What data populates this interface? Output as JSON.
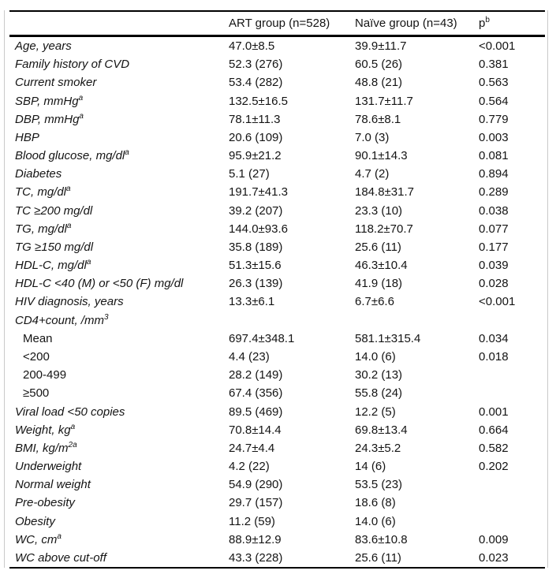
{
  "colors": {
    "background": "#ffffff",
    "text": "#141414",
    "rule_black": "#000000",
    "rule_gray": "#c9c9c9"
  },
  "table": {
    "header": {
      "col1": "",
      "col2": "ART group (n=528)",
      "col3": "Naïve group (n=43)",
      "col4": "p",
      "col4_sup": "b"
    },
    "rows": [
      {
        "label": "Age, years",
        "sup": "",
        "indent": false,
        "upright": false,
        "art": "47.0±8.5",
        "naive": "39.9±11.7",
        "p": "<0.001"
      },
      {
        "label": "Family history of CVD",
        "sup": "",
        "indent": false,
        "upright": false,
        "art": "52.3 (276)",
        "naive": "60.5 (26)",
        "p": "0.381"
      },
      {
        "label": "Current smoker",
        "sup": "",
        "indent": false,
        "upright": false,
        "art": "53.4 (282)",
        "naive": "48.8 (21)",
        "p": "0.563"
      },
      {
        "label": "SBP, mmHg",
        "sup": "a",
        "indent": false,
        "upright": false,
        "art": "132.5±16.5",
        "naive": "131.7±11.7",
        "p": "0.564"
      },
      {
        "label": "DBP, mmHg",
        "sup": "a",
        "indent": false,
        "upright": false,
        "art": "78.1±11.3",
        "naive": "78.6±8.1",
        "p": "0.779"
      },
      {
        "label": "HBP",
        "sup": "",
        "indent": false,
        "upright": false,
        "art": "20.6 (109)",
        "naive": "7.0 (3)",
        "p": "0.003"
      },
      {
        "label": "Blood glucose, mg/dl",
        "sup": "a",
        "indent": false,
        "upright": false,
        "art": "95.9±21.2",
        "naive": "90.1±14.3",
        "p": "0.081"
      },
      {
        "label": "Diabetes",
        "sup": "",
        "indent": false,
        "upright": false,
        "art": "5.1 (27)",
        "naive": "4.7 (2)",
        "p": "0.894"
      },
      {
        "label": "TC, mg/dl",
        "sup": "a",
        "indent": false,
        "upright": false,
        "art": "191.7±41.3",
        "naive": "184.8±31.7",
        "p": "0.289"
      },
      {
        "label": "TC ≥200 mg/dl",
        "sup": "",
        "indent": false,
        "upright": false,
        "art": "39.2 (207)",
        "naive": "23.3 (10)",
        "p": "0.038"
      },
      {
        "label": "TG, mg/dl",
        "sup": "a",
        "indent": false,
        "upright": false,
        "art": "144.0±93.6",
        "naive": "118.2±70.7",
        "p": "0.077"
      },
      {
        "label": "TG ≥150 mg/dl",
        "sup": "",
        "indent": false,
        "upright": false,
        "art": "35.8 (189)",
        "naive": "25.6 (11)",
        "p": "0.177"
      },
      {
        "label": "HDL-C, mg/dl",
        "sup": "a",
        "indent": false,
        "upright": false,
        "art": "51.3±15.6",
        "naive": "46.3±10.4",
        "p": "0.039"
      },
      {
        "label": "HDL-C <40 (M) or <50 (F) mg/dl",
        "sup": "",
        "indent": false,
        "upright": false,
        "art": "26.3 (139)",
        "naive": "41.9 (18)",
        "p": "0.028"
      },
      {
        "label": "HIV diagnosis, years",
        "sup": "",
        "indent": false,
        "upright": false,
        "art": "13.3±6.1",
        "naive": "6.7±6.6",
        "p": "<0.001"
      },
      {
        "label": "CD4+count, /mm",
        "sup": "3",
        "indent": false,
        "upright": false,
        "art": "",
        "naive": "",
        "p": ""
      },
      {
        "label": "Mean",
        "sup": "",
        "indent": true,
        "upright": true,
        "art": "697.4±348.1",
        "naive": "581.1±315.4",
        "p": "0.034"
      },
      {
        "label": "<200",
        "sup": "",
        "indent": true,
        "upright": true,
        "art": "4.4 (23)",
        "naive": "14.0 (6)",
        "p": "0.018"
      },
      {
        "label": "200-499",
        "sup": "",
        "indent": true,
        "upright": true,
        "art": "28.2 (149)",
        "naive": "30.2 (13)",
        "p": ""
      },
      {
        "label": "≥500",
        "sup": "",
        "indent": true,
        "upright": true,
        "art": "67.4 (356)",
        "naive": "55.8 (24)",
        "p": ""
      },
      {
        "label": "Viral load <50 copies",
        "sup": "",
        "indent": false,
        "upright": false,
        "art": "89.5 (469)",
        "naive": "12.2 (5)",
        "p": "0.001"
      },
      {
        "label": "Weight, kg",
        "sup": "a",
        "indent": false,
        "upright": false,
        "art": "70.8±14.4",
        "naive": "69.8±13.4",
        "p": "0.664"
      },
      {
        "label": "BMI, kg/m",
        "sup": "2a",
        "indent": false,
        "upright": false,
        "art": "24.7±4.4",
        "naive": "24.3±5.2",
        "p": "0.582"
      },
      {
        "label": "Underweight",
        "sup": "",
        "indent": false,
        "upright": false,
        "art": "4.2 (22)",
        "naive": "14 (6)",
        "p": "0.202"
      },
      {
        "label": "Normal weight",
        "sup": "",
        "indent": false,
        "upright": false,
        "art": "54.9 (290)",
        "naive": "53.5 (23)",
        "p": ""
      },
      {
        "label": "Pre-obesity",
        "sup": "",
        "indent": false,
        "upright": false,
        "art": "29.7 (157)",
        "naive": "18.6 (8)",
        "p": ""
      },
      {
        "label": "Obesity",
        "sup": "",
        "indent": false,
        "upright": false,
        "art": "11.2 (59)",
        "naive": "14.0 (6)",
        "p": ""
      },
      {
        "label": "WC, cm",
        "sup": "a",
        "indent": false,
        "upright": false,
        "art": "88.9±12.9",
        "naive": "83.6±10.8",
        "p": "0.009"
      },
      {
        "label": "WC above cut-off",
        "sup": "",
        "indent": false,
        "upright": false,
        "art": "43.3 (228)",
        "naive": "25.6 (11)",
        "p": "0.023"
      }
    ]
  }
}
